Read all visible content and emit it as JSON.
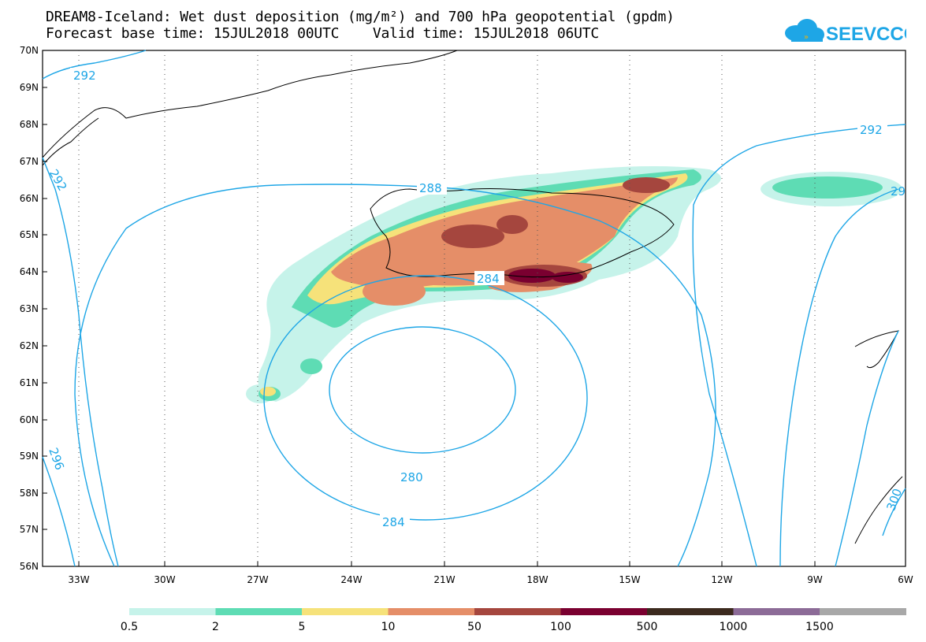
{
  "title": {
    "line1": "DREAM8-Iceland: Wet dust deposition (mg/m²) and 700 hPa geopotential (gpdm)",
    "line2": "Forecast base time: 15JUL2018 00UTC    Valid time: 15JUL2018 06UTC"
  },
  "logo": {
    "text": "SEEVCCC",
    "icon": "cloud-icon",
    "color": "#1ea6e6"
  },
  "axes": {
    "lat_labels": [
      "70N",
      "69N",
      "68N",
      "67N",
      "66N",
      "65N",
      "64N",
      "63N",
      "62N",
      "61N",
      "60N",
      "59N",
      "58N",
      "57N",
      "56N"
    ],
    "lon_labels": [
      "33W",
      "30W",
      "27W",
      "24W",
      "21W",
      "18W",
      "15W",
      "12W",
      "9W",
      "6W"
    ]
  },
  "contours": {
    "color": "#1ea6e6",
    "labels": [
      "292",
      "292",
      "292",
      "288",
      "284",
      "280",
      "284",
      "296",
      "300",
      "29"
    ]
  },
  "legend": {
    "thresholds": [
      "0.5",
      "2",
      "5",
      "10",
      "50",
      "100",
      "500",
      "1000",
      "1500"
    ],
    "colors": [
      "#c6f3ea",
      "#5edcb4",
      "#f6e27a",
      "#e58e68",
      "#a5463e",
      "#7a0030",
      "#3c2a1e",
      "#8c6b97",
      "#a8a8a8"
    ]
  }
}
